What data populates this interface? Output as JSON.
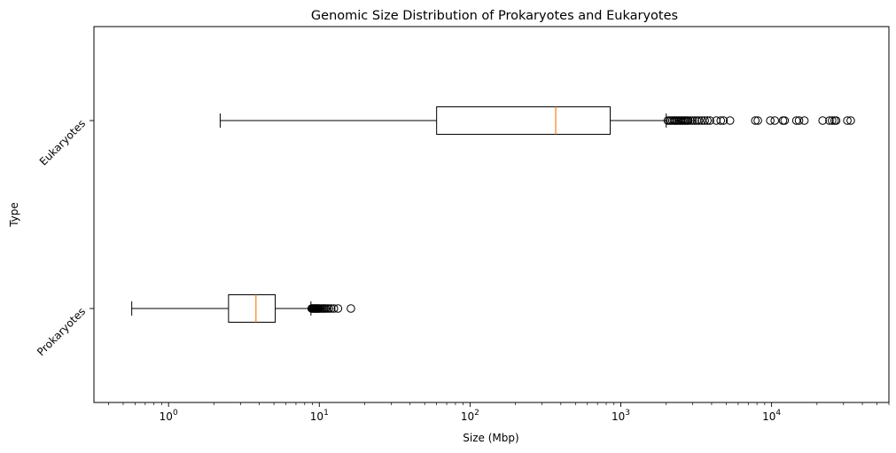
{
  "chart_data": {
    "type": "boxplot",
    "orientation": "horizontal",
    "title": "Genomic Size Distribution of Prokaryotes and Eukaryotes",
    "xlabel": "Size (Mbp)",
    "ylabel": "Type",
    "x_scale": "log",
    "xlim": [
      0.32,
      60000
    ],
    "x_ticks": [
      {
        "value": 1,
        "base": "10",
        "exp": "0"
      },
      {
        "value": 10,
        "base": "10",
        "exp": "1"
      },
      {
        "value": 100,
        "base": "10",
        "exp": "2"
      },
      {
        "value": 1000,
        "base": "10",
        "exp": "3"
      },
      {
        "value": 10000,
        "base": "10",
        "exp": "4"
      }
    ],
    "categories": [
      "Prokaryotes",
      "Eukaryotes"
    ],
    "boxes": [
      {
        "name": "Prokaryotes",
        "whisker_low": 0.57,
        "q1": 2.5,
        "median": 3.8,
        "q3": 5.1,
        "whisker_high": 8.8,
        "outliers": [
          8.9,
          9.0,
          9.1,
          9.2,
          9.3,
          9.4,
          9.5,
          9.6,
          9.7,
          9.8,
          9.9,
          10.0,
          10.2,
          10.4,
          10.6,
          10.8,
          11.0,
          11.3,
          11.6,
          12.0,
          12.5,
          13.3,
          16.2
        ]
      },
      {
        "name": "Eukaryotes",
        "whisker_low": 2.2,
        "q1": 60,
        "median": 370,
        "q3": 850,
        "whisker_high": 2000,
        "outliers": [
          2050,
          2100,
          2150,
          2200,
          2250,
          2300,
          2350,
          2400,
          2450,
          2500,
          2550,
          2600,
          2650,
          2700,
          2750,
          2800,
          2900,
          3000,
          3100,
          3200,
          3300,
          3450,
          3600,
          3750,
          3900,
          4300,
          4600,
          4800,
          5300,
          7800,
          8100,
          9800,
          10500,
          11900,
          12200,
          14600,
          15200,
          16500,
          21800,
          24200,
          25200,
          26200,
          26800,
          31800,
          33500
        ]
      }
    ],
    "colors": {
      "box": "#000000",
      "median": "#ff7f0e",
      "whisker": "#000000",
      "outlier": "#000000"
    },
    "grid": false
  }
}
